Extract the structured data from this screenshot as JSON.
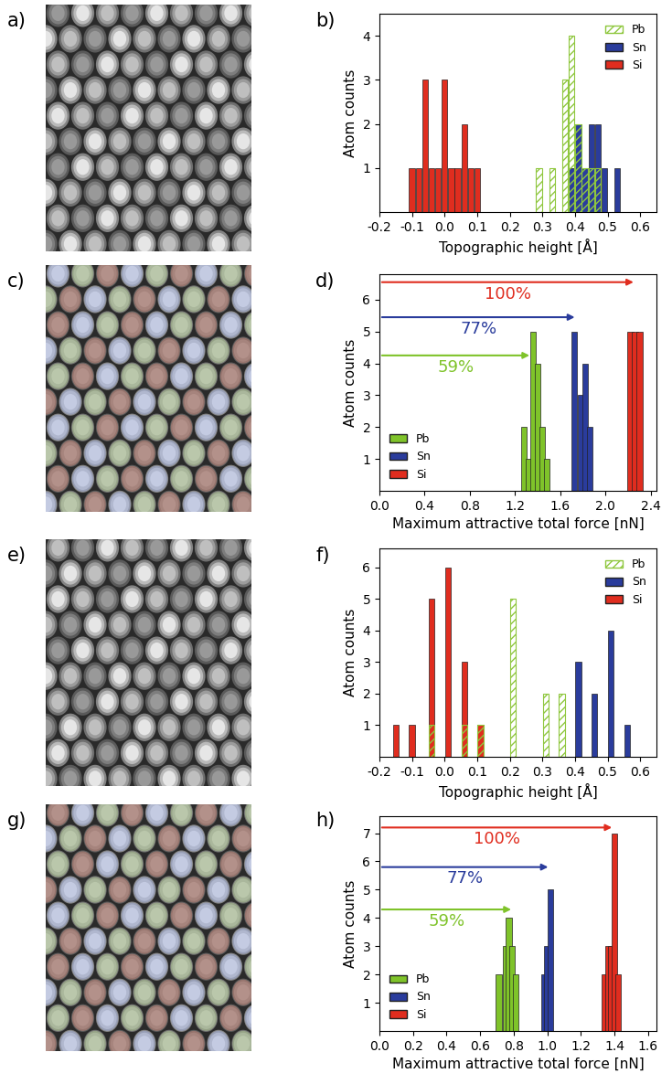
{
  "image_panels": [
    {
      "label": "a)",
      "overlay": false
    },
    {
      "label": "c)",
      "overlay": true
    },
    {
      "label": "e)",
      "overlay": false
    },
    {
      "label": "g)",
      "overlay": true
    }
  ],
  "chart_data": [
    {
      "label": "b)",
      "type": "bar",
      "xlabel": "Topographic height [Å]",
      "ylabel": "Atom counts",
      "xlim": [
        -0.2,
        0.65
      ],
      "xticks": [
        -0.2,
        -0.1,
        0.0,
        0.1,
        0.2,
        0.3,
        0.4,
        0.5,
        0.6
      ],
      "ylim": [
        0,
        4.5
      ],
      "yticks": [
        1,
        2,
        3,
        4
      ],
      "legend": "upper right",
      "series": [
        {
          "name": "Pb",
          "color": "#8fc73e",
          "x": [
            0.29,
            0.33,
            0.37,
            0.39,
            0.41,
            0.43,
            0.45,
            0.47
          ],
          "values": [
            1,
            1,
            3,
            4,
            2,
            1,
            1,
            1
          ]
        },
        {
          "name": "Sn",
          "color": "#2a3c9c",
          "x": [
            0.39,
            0.41,
            0.43,
            0.45,
            0.47,
            0.49,
            0.53
          ],
          "values": [
            1,
            2,
            1,
            2,
            2,
            1,
            1
          ]
        },
        {
          "name": "Si",
          "color": "#e02d1f",
          "x": [
            -0.1,
            -0.08,
            -0.06,
            -0.04,
            -0.02,
            0.0,
            0.02,
            0.04,
            0.06,
            0.08,
            0.1
          ],
          "values": [
            1,
            1,
            3,
            1,
            1,
            3,
            1,
            1,
            2,
            1,
            1
          ]
        }
      ]
    },
    {
      "label": "d)",
      "type": "bar",
      "xlabel": "Maximum attractive total force [nN]",
      "ylabel": "Atom counts",
      "xlim": [
        0.0,
        2.45
      ],
      "xticks": [
        0.0,
        0.4,
        0.8,
        1.2,
        1.6,
        2.0,
        2.4
      ],
      "ylim": [
        0,
        6.8
      ],
      "yticks": [
        1,
        2,
        3,
        4,
        5,
        6
      ],
      "legend": "lower left",
      "series": [
        {
          "name": "Pb",
          "color": "#7fc32a",
          "x": [
            1.28,
            1.32,
            1.36,
            1.4,
            1.44,
            1.48
          ],
          "values": [
            2,
            1,
            5,
            4,
            2,
            1
          ]
        },
        {
          "name": "Sn",
          "color": "#2a3c9c",
          "x": [
            1.72,
            1.78,
            1.82,
            1.86
          ],
          "values": [
            5,
            3,
            4,
            2
          ]
        },
        {
          "name": "Si",
          "color": "#e02d1f",
          "x": [
            2.22,
            2.26,
            2.3
          ],
          "values": [
            5,
            5,
            5
          ]
        }
      ],
      "annotations": [
        {
          "text": "100%",
          "x": 2.27,
          "y": 6.55,
          "color": "#e02d1f"
        },
        {
          "text": "77%",
          "x": 1.75,
          "y": 5.45,
          "color": "#2a3c9c"
        },
        {
          "text": "59%",
          "x": 1.35,
          "y": 4.25,
          "color": "#7fc32a"
        }
      ]
    },
    {
      "label": "f)",
      "type": "bar",
      "xlabel": "Topographic height [Å]",
      "ylabel": "Atom counts",
      "xlim": [
        -0.2,
        0.65
      ],
      "xticks": [
        -0.2,
        -0.1,
        0.0,
        0.1,
        0.2,
        0.3,
        0.4,
        0.5,
        0.6
      ],
      "ylim": [
        0,
        6.6
      ],
      "yticks": [
        1,
        2,
        3,
        4,
        5,
        6
      ],
      "legend": "upper right",
      "series": [
        {
          "name": "Pb",
          "color": "#8fc73e",
          "x": [
            -0.04,
            0.06,
            0.11,
            0.21,
            0.31,
            0.36
          ],
          "values": [
            1,
            1,
            1,
            5,
            2,
            2
          ]
        },
        {
          "name": "Sn",
          "color": "#2a3c9c",
          "x": [
            0.41,
            0.46,
            0.51,
            0.56
          ],
          "values": [
            3,
            2,
            4,
            1
          ]
        },
        {
          "name": "Si",
          "color": "#e02d1f",
          "x": [
            -0.15,
            -0.1,
            -0.04,
            0.01,
            0.06,
            0.11
          ],
          "values": [
            1,
            1,
            5,
            6,
            3,
            1
          ]
        }
      ]
    },
    {
      "label": "h)",
      "type": "bar",
      "xlabel": "Maximum attractive total force [nN]",
      "ylabel": "Atom counts",
      "xlim": [
        0.0,
        1.65
      ],
      "xticks": [
        0.0,
        0.2,
        0.4,
        0.6,
        0.8,
        1.0,
        1.2,
        1.4,
        1.6
      ],
      "ylim": [
        0,
        7.6
      ],
      "yticks": [
        1,
        2,
        3,
        4,
        5,
        6,
        7
      ],
      "legend": "lower left",
      "series": [
        {
          "name": "Pb",
          "color": "#7fc32a",
          "x": [
            0.71,
            0.75,
            0.77,
            0.79,
            0.81
          ],
          "values": [
            2,
            3,
            4,
            3,
            2
          ]
        },
        {
          "name": "Sn",
          "color": "#2a3c9c",
          "x": [
            0.98,
            1.0,
            1.02
          ],
          "values": [
            2,
            3,
            5
          ]
        },
        {
          "name": "Si",
          "color": "#e02d1f",
          "x": [
            1.34,
            1.36,
            1.38,
            1.4,
            1.42
          ],
          "values": [
            2,
            3,
            3,
            7,
            2
          ]
        }
      ],
      "annotations": [
        {
          "text": "100%",
          "x": 1.4,
          "y": 7.2,
          "color": "#e02d1f"
        },
        {
          "text": "77%",
          "x": 1.02,
          "y": 5.8,
          "color": "#2a3c9c"
        },
        {
          "text": "59%",
          "x": 0.8,
          "y": 4.3,
          "color": "#7fc32a"
        }
      ]
    }
  ]
}
